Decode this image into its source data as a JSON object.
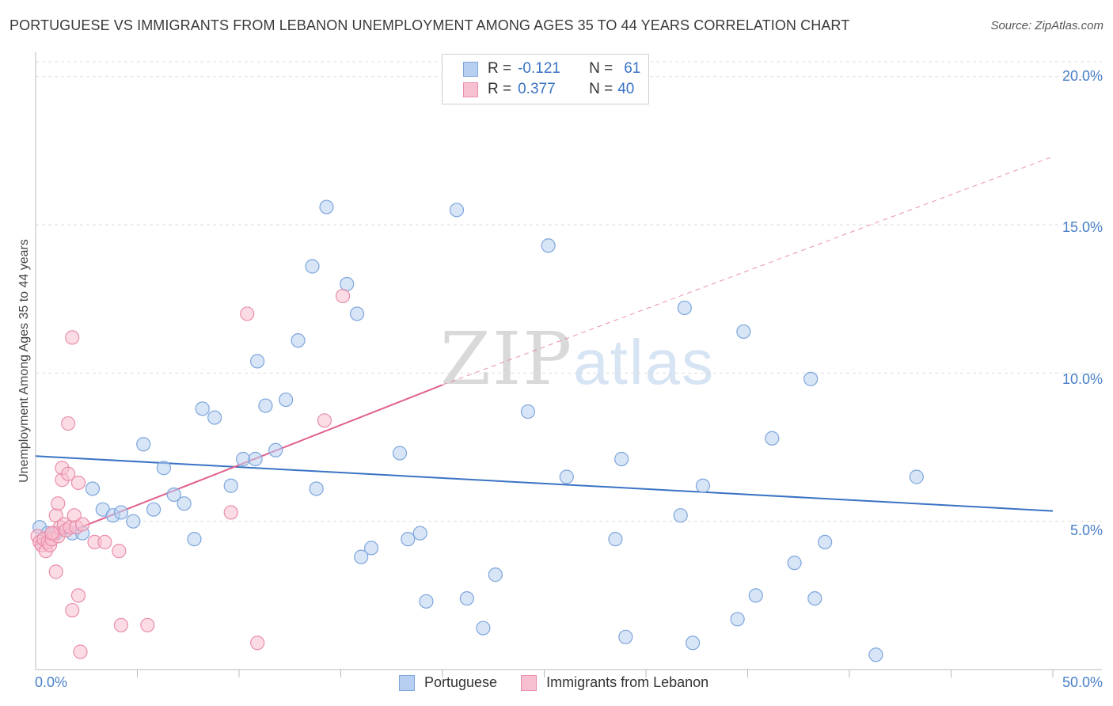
{
  "header": {
    "title": "PORTUGUESE VS IMMIGRANTS FROM LEBANON UNEMPLOYMENT AMONG AGES 35 TO 44 YEARS CORRELATION CHART",
    "source": "Source: ZipAtlas.com"
  },
  "watermark": {
    "zip": "ZIP",
    "atlas": "atlas"
  },
  "legend_top": {
    "r_label": "R =",
    "n_label": "N =",
    "rows": [
      {
        "series": "Portuguese",
        "r": "-0.121",
        "n": "61"
      },
      {
        "series": "Immigrants from Lebanon",
        "r": "0.377",
        "n": "40"
      }
    ]
  },
  "colors": {
    "blue_fill": "#b7cff0",
    "blue_stroke": "#7ea6dc",
    "blue_line": "#3a73c4",
    "pink_fill": "#f7c0d0",
    "pink_stroke": "#e98eab",
    "pink_line": "#e0608f",
    "grid": "#dddddd",
    "tick_text": "#4a80c8"
  },
  "chart_data": {
    "type": "scatter",
    "title": "PORTUGUESE VS IMMIGRANTS FROM LEBANON UNEMPLOYMENT AMONG AGES 35 TO 44 YEARS CORRELATION CHART",
    "xlabel": "",
    "ylabel": "Unemployment Among Ages 35 to 44 years",
    "xlim": [
      0,
      50
    ],
    "ylim": [
      0,
      20.5
    ],
    "y_ticks": [
      {
        "value": 5,
        "label": "5.0%"
      },
      {
        "value": 10,
        "label": "10.0%"
      },
      {
        "value": 15,
        "label": "15.0%"
      },
      {
        "value": 20,
        "label": "20.0%"
      }
    ],
    "x_ticks": [
      {
        "value": 0,
        "label": "0.0%"
      },
      {
        "value": 50,
        "label": "50.0%"
      }
    ],
    "x_minor_ticks": [
      5,
      10,
      15,
      20,
      25,
      30,
      35,
      40,
      45
    ],
    "legend": [
      "Portuguese",
      "Immigrants from Lebanon"
    ],
    "series": [
      {
        "name": "Portuguese",
        "points": [
          [
            0.2,
            4.8
          ],
          [
            0.6,
            4.6
          ],
          [
            1.0,
            4.6
          ],
          [
            1.8,
            4.6
          ],
          [
            2.3,
            4.6
          ],
          [
            2.8,
            6.1
          ],
          [
            3.3,
            5.4
          ],
          [
            3.8,
            5.2
          ],
          [
            4.2,
            5.3
          ],
          [
            4.8,
            5.0
          ],
          [
            5.3,
            7.6
          ],
          [
            5.8,
            5.4
          ],
          [
            6.3,
            6.8
          ],
          [
            6.8,
            5.9
          ],
          [
            7.3,
            5.6
          ],
          [
            7.8,
            4.4
          ],
          [
            8.2,
            8.8
          ],
          [
            8.8,
            8.5
          ],
          [
            9.6,
            6.2
          ],
          [
            10.2,
            7.1
          ],
          [
            10.8,
            7.1
          ],
          [
            10.9,
            10.4
          ],
          [
            11.3,
            8.9
          ],
          [
            11.8,
            7.4
          ],
          [
            12.3,
            9.1
          ],
          [
            12.9,
            11.1
          ],
          [
            13.6,
            13.6
          ],
          [
            13.8,
            6.1
          ],
          [
            14.3,
            15.6
          ],
          [
            15.3,
            13.0
          ],
          [
            15.8,
            12.0
          ],
          [
            16.0,
            3.8
          ],
          [
            16.5,
            4.1
          ],
          [
            17.9,
            7.3
          ],
          [
            18.3,
            4.4
          ],
          [
            18.9,
            4.6
          ],
          [
            19.2,
            2.3
          ],
          [
            20.7,
            15.5
          ],
          [
            21.2,
            2.4
          ],
          [
            22.0,
            1.4
          ],
          [
            22.6,
            3.2
          ],
          [
            24.2,
            8.7
          ],
          [
            25.2,
            14.3
          ],
          [
            26.1,
            6.5
          ],
          [
            28.5,
            4.4
          ],
          [
            28.8,
            7.1
          ],
          [
            29.0,
            1.1
          ],
          [
            31.7,
            5.2
          ],
          [
            31.9,
            12.2
          ],
          [
            32.3,
            0.9
          ],
          [
            32.8,
            6.2
          ],
          [
            34.5,
            1.7
          ],
          [
            34.8,
            11.4
          ],
          [
            35.4,
            2.5
          ],
          [
            36.2,
            7.8
          ],
          [
            37.3,
            3.6
          ],
          [
            38.1,
            9.8
          ],
          [
            38.3,
            2.4
          ],
          [
            38.8,
            4.3
          ],
          [
            41.3,
            0.5
          ],
          [
            43.3,
            6.5
          ]
        ]
      },
      {
        "name": "Immigrants from Lebanon",
        "points": [
          [
            0.1,
            4.5
          ],
          [
            0.2,
            4.3
          ],
          [
            0.3,
            4.2
          ],
          [
            0.4,
            4.4
          ],
          [
            0.5,
            4.0
          ],
          [
            0.6,
            4.3
          ],
          [
            0.7,
            4.2
          ],
          [
            0.8,
            4.4
          ],
          [
            0.9,
            4.6
          ],
          [
            1.0,
            5.2
          ],
          [
            1.1,
            4.5
          ],
          [
            1.2,
            4.8
          ],
          [
            1.0,
            3.3
          ],
          [
            1.1,
            5.6
          ],
          [
            1.3,
            6.4
          ],
          [
            1.3,
            6.8
          ],
          [
            1.4,
            4.9
          ],
          [
            1.5,
            4.7
          ],
          [
            1.6,
            6.6
          ],
          [
            1.6,
            8.3
          ],
          [
            1.7,
            4.8
          ],
          [
            1.8,
            2.0
          ],
          [
            1.8,
            11.2
          ],
          [
            1.9,
            5.2
          ],
          [
            2.0,
            4.8
          ],
          [
            2.1,
            6.3
          ],
          [
            2.1,
            2.5
          ],
          [
            2.2,
            0.6
          ],
          [
            2.3,
            4.9
          ],
          [
            2.9,
            4.3
          ],
          [
            3.4,
            4.3
          ],
          [
            4.1,
            4.0
          ],
          [
            4.2,
            1.5
          ],
          [
            5.5,
            1.5
          ],
          [
            9.6,
            5.3
          ],
          [
            10.4,
            12.0
          ],
          [
            10.9,
            0.9
          ],
          [
            14.2,
            8.4
          ],
          [
            15.1,
            12.6
          ],
          [
            0.8,
            4.6
          ]
        ]
      }
    ],
    "trend_lines": [
      {
        "series": "Portuguese",
        "x0": 0,
        "y0": 7.2,
        "x1": 50,
        "y1": 5.35,
        "style": "solid"
      },
      {
        "series": "Immigrants from Lebanon",
        "x0": 0,
        "y0": 4.2,
        "x1": 20,
        "y1": 9.6,
        "style": "solid"
      },
      {
        "series": "Immigrants from Lebanon",
        "x0": 20,
        "y0": 9.6,
        "x1": 50,
        "y1": 17.3,
        "style": "dashed"
      }
    ]
  }
}
